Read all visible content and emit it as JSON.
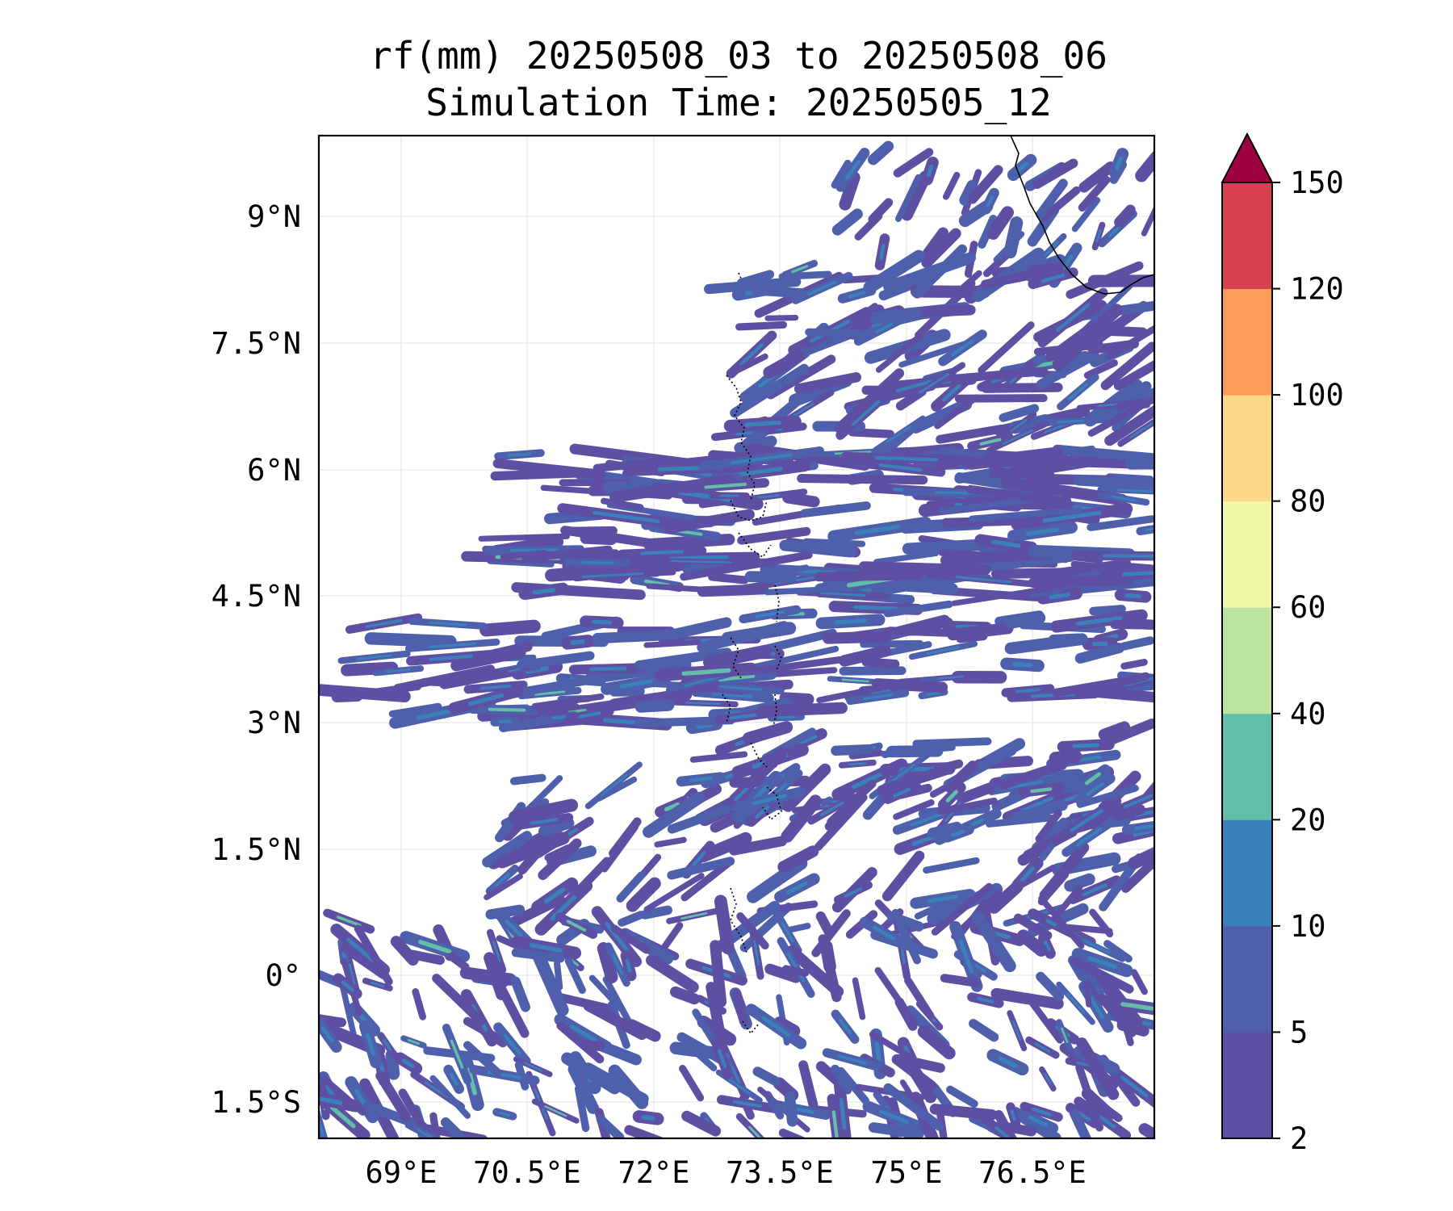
{
  "title": {
    "line1": "rf(mm) 20250508_03 to 20250508_06",
    "line2": "Simulation Time: 20250505_12"
  },
  "axes": {
    "lon_ticks": [
      "69°E",
      "70.5°E",
      "72°E",
      "73.5°E",
      "75°E",
      "76.5°E"
    ],
    "lat_ticks": [
      "9°N",
      "7.5°N",
      "6°N",
      "4.5°N",
      "3°N",
      "1.5°N",
      "0°",
      "1.5°S"
    ]
  },
  "colorbar": {
    "levels": [
      "2",
      "5",
      "10",
      "20",
      "40",
      "60",
      "80",
      "100",
      "120",
      "150"
    ],
    "colors": [
      "#5e4fa2",
      "#4e60ab",
      "#3a80b9",
      "#62bda9",
      "#bde3a1",
      "#f1f9a9",
      "#fbd888",
      "#f99d59",
      "#d7404f",
      "#9e0142"
    ],
    "extend": "max"
  },
  "map": {
    "extent_lon": [
      68,
      78
    ],
    "extent_lat": [
      -1.9,
      9.95
    ],
    "gridlines": true,
    "features": [
      "coastline of south-west India (top-right)",
      "Maldives atolls (dotted, centre)"
    ]
  }
}
